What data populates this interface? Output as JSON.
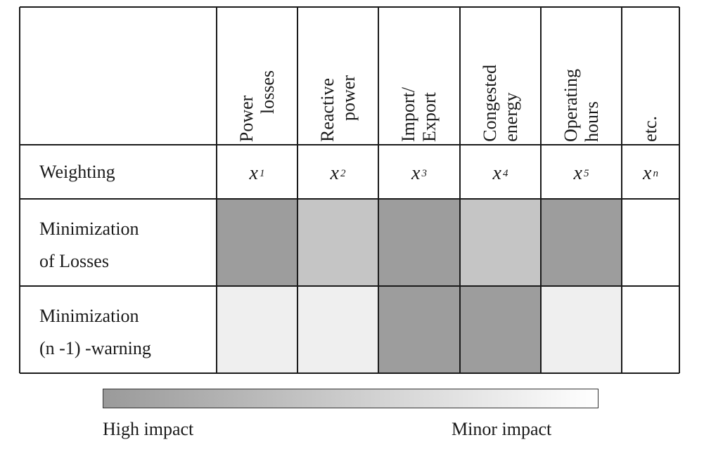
{
  "columns": [
    {
      "line1": "Power",
      "line2": "losses"
    },
    {
      "line1": "Reactive",
      "line2": "power"
    },
    {
      "line1": "Import/",
      "line2": "Export"
    },
    {
      "line1": "Congested",
      "line2": "energy"
    },
    {
      "line1": "Operating",
      "line2": "hours"
    },
    {
      "line1": "etc.",
      "line2": ""
    }
  ],
  "weighting_label": "Weighting",
  "weights": [
    {
      "base": "x",
      "sub": "1"
    },
    {
      "base": "x",
      "sub": "2"
    },
    {
      "base": "x",
      "sub": "3"
    },
    {
      "base": "x",
      "sub": "4"
    },
    {
      "base": "x",
      "sub": "5"
    },
    {
      "base": "x",
      "sub": "n"
    }
  ],
  "rows": [
    {
      "line1": "Minimization",
      "line2": "of Losses",
      "impact_colors": [
        "#9d9d9d",
        "#c5c5c5",
        "#9d9d9d",
        "#c5c5c5",
        "#9d9d9d",
        "#ffffff"
      ]
    },
    {
      "line1": "Minimization",
      "line2": "(n -1) -warning",
      "impact_colors": [
        "#efefef",
        "#efefef",
        "#9d9d9d",
        "#9d9d9d",
        "#efefef",
        "#ffffff"
      ]
    }
  ],
  "legend": {
    "high_label": "High impact",
    "minor_label": "Minor impact",
    "gradient_from": "#9a9a9a",
    "gradient_to": "#ffffff"
  }
}
